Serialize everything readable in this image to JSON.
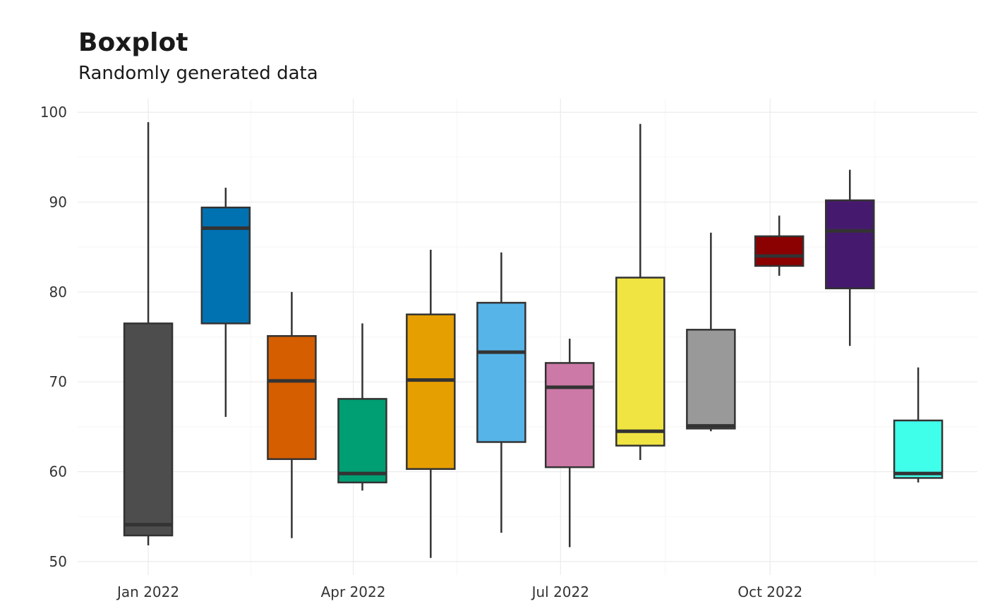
{
  "chart_data": {
    "type": "boxplot",
    "title": "Boxplot",
    "subtitle": "Randomly generated data",
    "xlabel": "",
    "ylabel": "",
    "ylim": [
      48.5,
      101.5
    ],
    "yticks": [
      50,
      60,
      70,
      80,
      90,
      100
    ],
    "xlim": [
      "2021-12-01",
      "2022-12-31"
    ],
    "xticks": [
      {
        "date": "2022-01-01",
        "label": "Jan 2022"
      },
      {
        "date": "2022-04-01",
        "label": "Apr 2022"
      },
      {
        "date": "2022-07-01",
        "label": "Jul 2022"
      },
      {
        "date": "2022-10-01",
        "label": "Oct 2022"
      }
    ],
    "grid": true,
    "series": [
      {
        "date": "2022-01-01",
        "min": 51.8,
        "q1": 52.9,
        "median": 54.1,
        "q3": 76.5,
        "max": 98.9,
        "color": "#4d4d4d"
      },
      {
        "date": "2022-02-04",
        "min": 66.1,
        "q1": 76.5,
        "median": 87.1,
        "q3": 89.4,
        "max": 91.6,
        "color": "#0072b2"
      },
      {
        "date": "2022-03-05",
        "min": 52.6,
        "q1": 61.4,
        "median": 70.1,
        "q3": 75.1,
        "max": 80.0,
        "color": "#d55e00"
      },
      {
        "date": "2022-04-05",
        "min": 57.9,
        "q1": 58.8,
        "median": 59.8,
        "q3": 68.1,
        "max": 76.5,
        "color": "#009e73"
      },
      {
        "date": "2022-05-05",
        "min": 50.4,
        "q1": 60.3,
        "median": 70.2,
        "q3": 77.5,
        "max": 84.7,
        "color": "#e69f00"
      },
      {
        "date": "2022-06-05",
        "min": 53.2,
        "q1": 63.3,
        "median": 73.3,
        "q3": 78.8,
        "max": 84.4,
        "color": "#56b4e9"
      },
      {
        "date": "2022-07-05",
        "min": 51.6,
        "q1": 60.5,
        "median": 69.4,
        "q3": 72.1,
        "max": 74.8,
        "color": "#cc79a7"
      },
      {
        "date": "2022-08-05",
        "min": 61.3,
        "q1": 62.9,
        "median": 64.5,
        "q3": 81.6,
        "max": 98.7,
        "color": "#f0e442"
      },
      {
        "date": "2022-09-05",
        "min": 64.5,
        "q1": 64.8,
        "median": 65.1,
        "q3": 75.8,
        "max": 86.6,
        "color": "#999999"
      },
      {
        "date": "2022-10-05",
        "min": 81.8,
        "q1": 82.9,
        "median": 84.0,
        "q3": 86.2,
        "max": 88.5,
        "color": "#8b0000"
      },
      {
        "date": "2022-11-05",
        "min": 74.0,
        "q1": 80.4,
        "median": 86.8,
        "q3": 90.2,
        "max": 93.6,
        "color": "#451a6e"
      },
      {
        "date": "2022-12-05",
        "min": 58.8,
        "q1": 59.3,
        "median": 59.8,
        "q3": 65.7,
        "max": 71.6,
        "color": "#40ffea"
      }
    ]
  }
}
